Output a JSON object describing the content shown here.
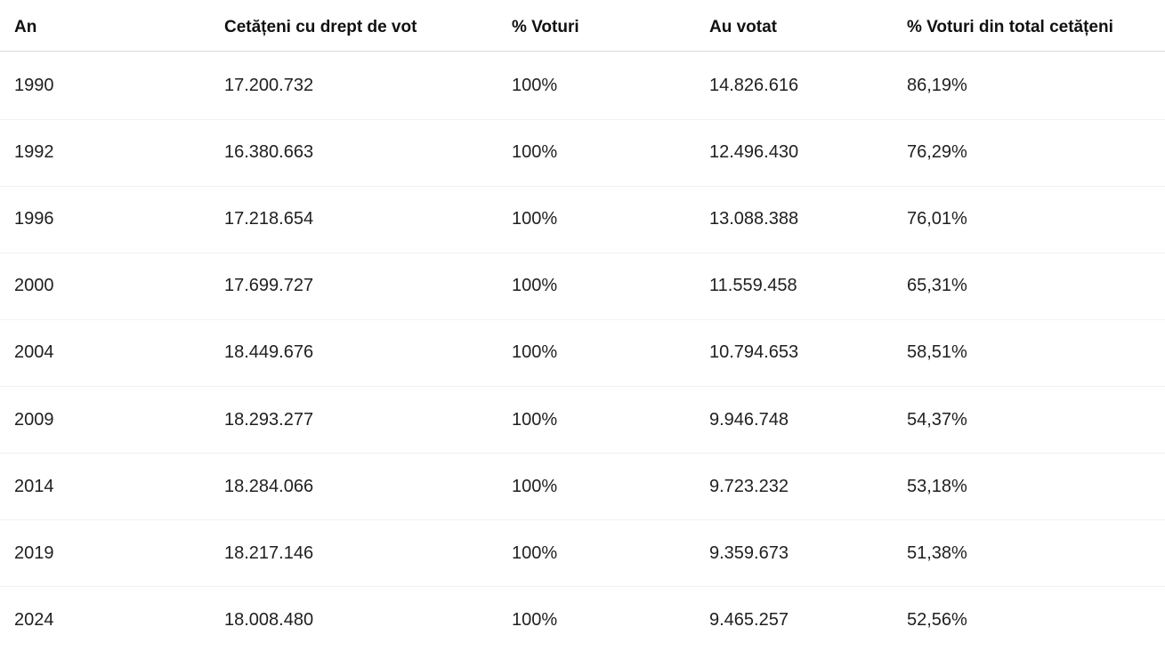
{
  "table": {
    "header": [
      "An",
      "Cetățeni cu drept de vot",
      "% Voturi",
      "Au votat",
      "% Voturi din total cetățeni"
    ],
    "rows": [
      [
        "1990",
        "17.200.732",
        "100%",
        "14.826.616",
        "86,19%"
      ],
      [
        "1992",
        "16.380.663",
        "100%",
        "12.496.430",
        "76,29%"
      ],
      [
        "1996",
        "17.218.654",
        "100%",
        "13.088.388",
        "76,01%"
      ],
      [
        "2000",
        "17.699.727",
        "100%",
        "11.559.458",
        "65,31%"
      ],
      [
        "2004",
        "18.449.676",
        "100%",
        "10.794.653",
        "58,51%"
      ],
      [
        "2009",
        "18.293.277",
        "100%",
        "9.946.748",
        "54,37%"
      ],
      [
        "2014",
        "18.284.066",
        "100%",
        "9.723.232",
        "53,18%"
      ],
      [
        "2019",
        "18.217.146",
        "100%",
        "9.359.673",
        "51,38%"
      ],
      [
        "2024",
        "18.008.480",
        "100%",
        "9.465.257",
        "52,56%"
      ]
    ]
  }
}
